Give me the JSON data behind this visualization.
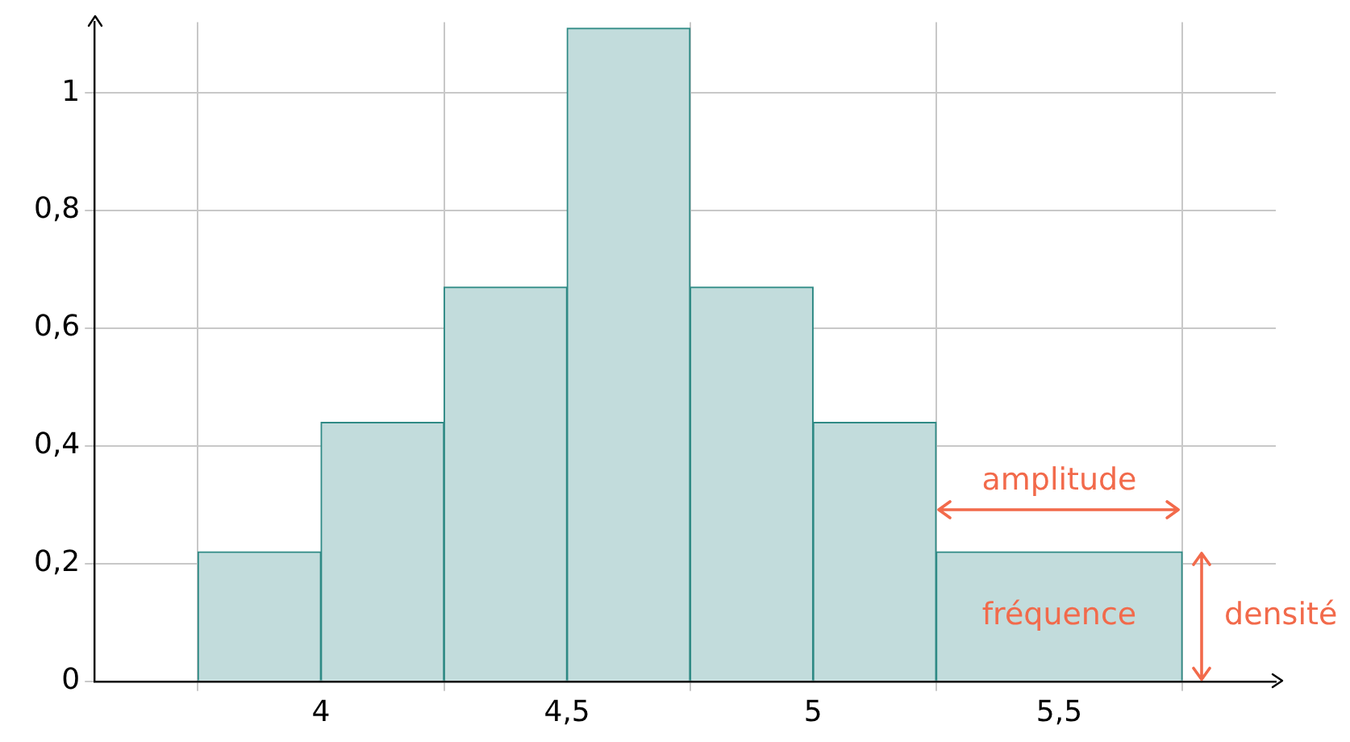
{
  "chart_data": {
    "type": "histogram",
    "bins": [
      3.75,
      4,
      4.25,
      4.5,
      4.75,
      5,
      5.25,
      5.75
    ],
    "values": [
      0.22,
      0.44,
      0.67,
      1.11,
      0.67,
      0.44,
      0.22
    ],
    "color": "#c2dcdc",
    "xlim": [
      3.54,
      5.94
    ],
    "ylim": [
      0,
      1.12
    ],
    "xticks": [
      4,
      {
        "value": 4.5,
        "label": "4,5"
      },
      5,
      {
        "value": 5.5,
        "label": "5,5"
      }
    ],
    "yticks": [
      0,
      {
        "value": 0.2,
        "label": "0,2"
      },
      {
        "value": 0.4,
        "label": "0,4"
      },
      {
        "value": 0.6,
        "label": "0,6"
      },
      {
        "value": 0.8,
        "label": "0,8"
      },
      1
    ],
    "grid": true,
    "legend": false,
    "annotations": [
      "amplitude",
      "fréquence",
      "densité"
    ]
  }
}
